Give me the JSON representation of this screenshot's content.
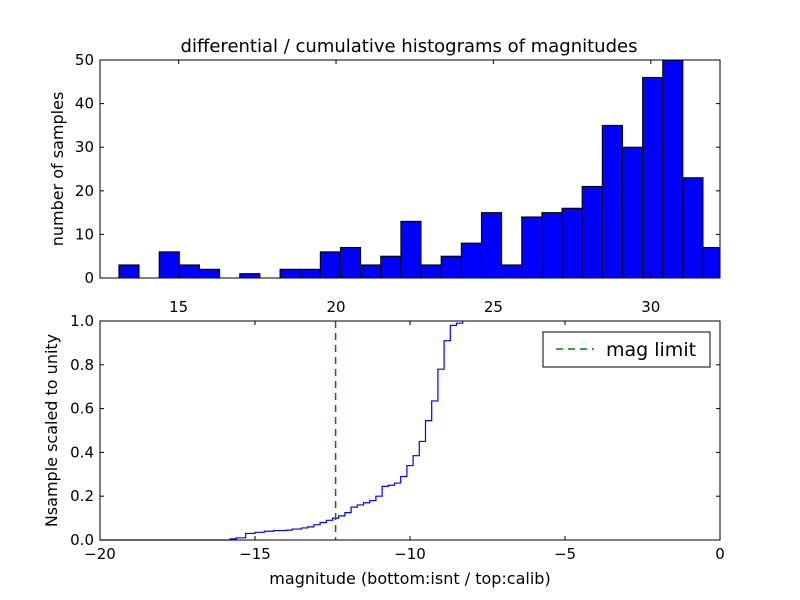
{
  "chart_data": [
    {
      "type": "bar",
      "title": "differential / cumulative histograms of magnitudes",
      "ylabel": "number of samples",
      "xlim": [
        12.5,
        32.2
      ],
      "ylim": [
        0,
        50
      ],
      "xticks": [
        15,
        20,
        25,
        30
      ],
      "yticks": [
        0,
        10,
        20,
        30,
        40,
        50
      ],
      "bin_width": 0.64,
      "bins_start": [
        13.1,
        13.74,
        14.38,
        15.02,
        15.66,
        16.3,
        16.94,
        17.58,
        18.22,
        18.86,
        19.5,
        20.14,
        20.78,
        21.42,
        22.06,
        22.7,
        23.34,
        23.98,
        24.62,
        25.26,
        25.9,
        26.54,
        27.18,
        27.82,
        28.46,
        29.1,
        29.74,
        30.38,
        31.02,
        31.66
      ],
      "values": [
        3,
        0,
        6,
        3,
        2,
        0,
        1,
        0,
        2,
        2,
        6,
        7,
        3,
        5,
        13,
        3,
        5,
        8,
        15,
        3,
        14,
        15,
        16,
        21,
        35,
        30,
        46,
        50,
        23,
        7
      ],
      "color": "#0000ff",
      "grid": false
    },
    {
      "type": "line",
      "xlabel": "magnitude (bottom:isnt / top:calib)",
      "ylabel": "Nsample scaled to unity",
      "xlim": [
        -20,
        0
      ],
      "ylim": [
        0,
        1.0
      ],
      "xticks": [
        -20,
        -15,
        -10,
        -5,
        0
      ],
      "yticks": [
        0.0,
        0.2,
        0.4,
        0.6,
        0.8,
        1.0
      ],
      "xtick_labels": [
        "−20",
        "−15",
        "−10",
        "−5",
        "0"
      ],
      "ytick_labels": [
        "0.0",
        "0.2",
        "0.4",
        "0.6",
        "0.8",
        "1.0"
      ],
      "series": [
        {
          "style": "step",
          "color": "#0000ff",
          "x": [
            -20,
            -15.8,
            -15.6,
            -15.3,
            -15.0,
            -14.7,
            -14.4,
            -14.0,
            -13.8,
            -13.5,
            -13.3,
            -13.1,
            -12.9,
            -12.7,
            -12.5,
            -12.3,
            -12.1,
            -11.9,
            -11.7,
            -11.5,
            -11.3,
            -11.1,
            -10.9,
            -10.7,
            -10.5,
            -10.3,
            -10.1,
            -9.9,
            -9.7,
            -9.5,
            -9.3,
            -9.1,
            -8.9,
            -8.7,
            -8.5,
            -8.3
          ],
          "y": [
            0.0,
            0.005,
            0.01,
            0.03,
            0.035,
            0.04,
            0.043,
            0.045,
            0.05,
            0.055,
            0.06,
            0.07,
            0.08,
            0.09,
            0.1,
            0.11,
            0.125,
            0.15,
            0.16,
            0.17,
            0.18,
            0.2,
            0.245,
            0.25,
            0.26,
            0.29,
            0.34,
            0.385,
            0.45,
            0.545,
            0.635,
            0.78,
            0.91,
            0.98,
            0.99,
            1.0
          ]
        },
        {
          "name": "mag limit",
          "style": "vline-dashed",
          "color": "#008000",
          "x_value": -12.4
        }
      ],
      "legend": "top-right",
      "grid": false
    }
  ]
}
